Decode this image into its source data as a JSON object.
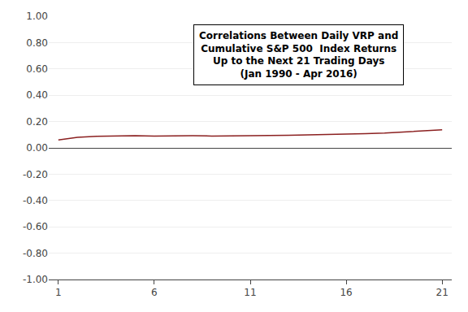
{
  "chart_data": {
    "type": "line",
    "title": "Correlations Between Daily VRP and\nCumulative S&P 500  Index Returns\nUp to the Next 21 Trading Days\n(Jan 1990 - Apr 2016)",
    "x": [
      1,
      2,
      3,
      4,
      5,
      6,
      7,
      8,
      9,
      10,
      11,
      12,
      13,
      14,
      15,
      16,
      17,
      18,
      19,
      20,
      21
    ],
    "values": [
      0.06,
      0.08,
      0.088,
      0.092,
      0.092,
      0.09,
      0.093,
      0.092,
      0.09,
      0.09,
      0.092,
      0.094,
      0.096,
      0.098,
      0.1,
      0.104,
      0.108,
      0.112,
      0.12,
      0.128,
      0.138
    ],
    "color": "#8B2020",
    "xlim": [
      0.5,
      21.5
    ],
    "xticks": [
      1,
      6,
      11,
      16,
      21
    ],
    "ylim": [
      -1.0,
      1.0
    ],
    "yticks": [
      {
        "value": -1.0,
        "label": "-1.00"
      },
      {
        "value": -0.8,
        "label": "-0.80"
      },
      {
        "value": -0.6,
        "label": "-0.60"
      },
      {
        "value": -0.4,
        "label": "-0.40"
      },
      {
        "value": -0.2,
        "label": "-0.20"
      },
      {
        "value": 0.0,
        "label": "0.00"
      },
      {
        "value": 0.2,
        "label": "0.20"
      },
      {
        "value": 0.4,
        "label": "0.40"
      },
      {
        "value": 0.6,
        "label": "0.60"
      },
      {
        "value": 0.8,
        "label": "0.80"
      },
      {
        "value": 1.0,
        "label": "1.00"
      }
    ],
    "grid": "y"
  }
}
